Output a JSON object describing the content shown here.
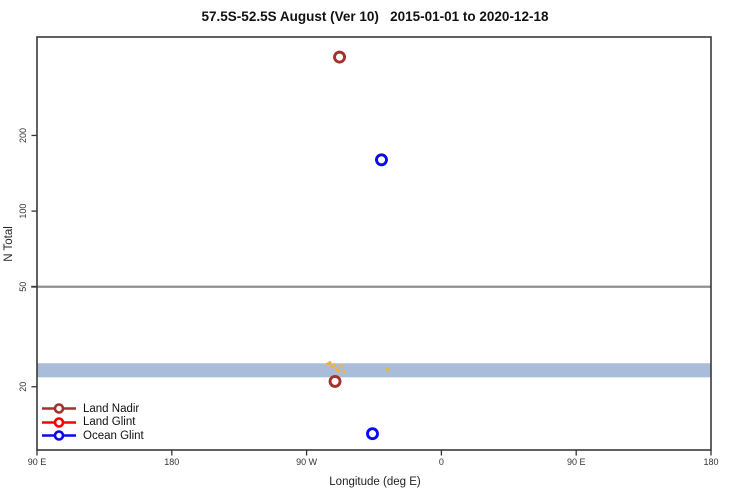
{
  "title": "57.5S-52.5S August (Ver 10)   2015-01-01 to 2020-12-18",
  "chart_data": {
    "type": "scatter",
    "title": "57.5S-52.5S August (Ver 10)   2015-01-01 to 2020-12-18",
    "xlabel": "Longitude (deg E)",
    "ylabel": "N Total",
    "y_scale": "log",
    "ylim": [
      11.2,
      493
    ],
    "x_axis_span_deg": 450,
    "x_ticks": [
      {
        "axis_deg": 90,
        "label": "90 E"
      },
      {
        "axis_deg": 180,
        "label": "180"
      },
      {
        "axis_deg": 270,
        "label": "90 W"
      },
      {
        "axis_deg": 360,
        "label": "0"
      },
      {
        "axis_deg": 450,
        "label": "90 E"
      },
      {
        "axis_deg": 540,
        "label": "180"
      }
    ],
    "y_ticks": [
      20,
      50,
      100,
      200
    ],
    "grid": "off",
    "reference_line": {
      "y": 50,
      "color": "#8f8f8f"
    },
    "band": {
      "y_from": 21.8,
      "y_to": 24.8,
      "color": "#a9bcda",
      "full_width": true
    },
    "series": [
      {
        "name": "Land Nadir",
        "color": "#a3322d",
        "symbol": "open-circle",
        "points": [
          {
            "lon": -68,
            "n": 410
          },
          {
            "lon": -71,
            "n": 21
          }
        ]
      },
      {
        "name": "Land Glint",
        "color": "#ff0000",
        "symbol": "open-circle",
        "points": []
      },
      {
        "name": "Ocean Glint",
        "color": "#0a0aee",
        "symbol": "open-circle",
        "points": [
          {
            "lon": -40,
            "n": 160
          },
          {
            "lon": -46,
            "n": 13
          }
        ]
      },
      {
        "name": "orange marks (unlabeled)",
        "color": "#f0b240",
        "symbol": "small-dot",
        "points": [
          {
            "lon": -76,
            "n": 24.6
          },
          {
            "lon": -74.5,
            "n": 24.9
          },
          {
            "lon": -73,
            "n": 24.0
          },
          {
            "lon": -71.5,
            "n": 24.4
          },
          {
            "lon": -70,
            "n": 23.4
          },
          {
            "lon": -68.5,
            "n": 23.1
          },
          {
            "lon": -67,
            "n": 24.1
          },
          {
            "lon": -65,
            "n": 23.0
          },
          {
            "lon": -36,
            "n": 23.4
          }
        ]
      }
    ],
    "legend": {
      "position": "bottom-left",
      "items": [
        {
          "label": "Land Nadir",
          "color": "#a3322d"
        },
        {
          "label": "Land Glint",
          "color": "#ff0000"
        },
        {
          "label": "Ocean Glint",
          "color": "#0a0aee"
        }
      ]
    },
    "axis_color": "#3a3a3a"
  }
}
